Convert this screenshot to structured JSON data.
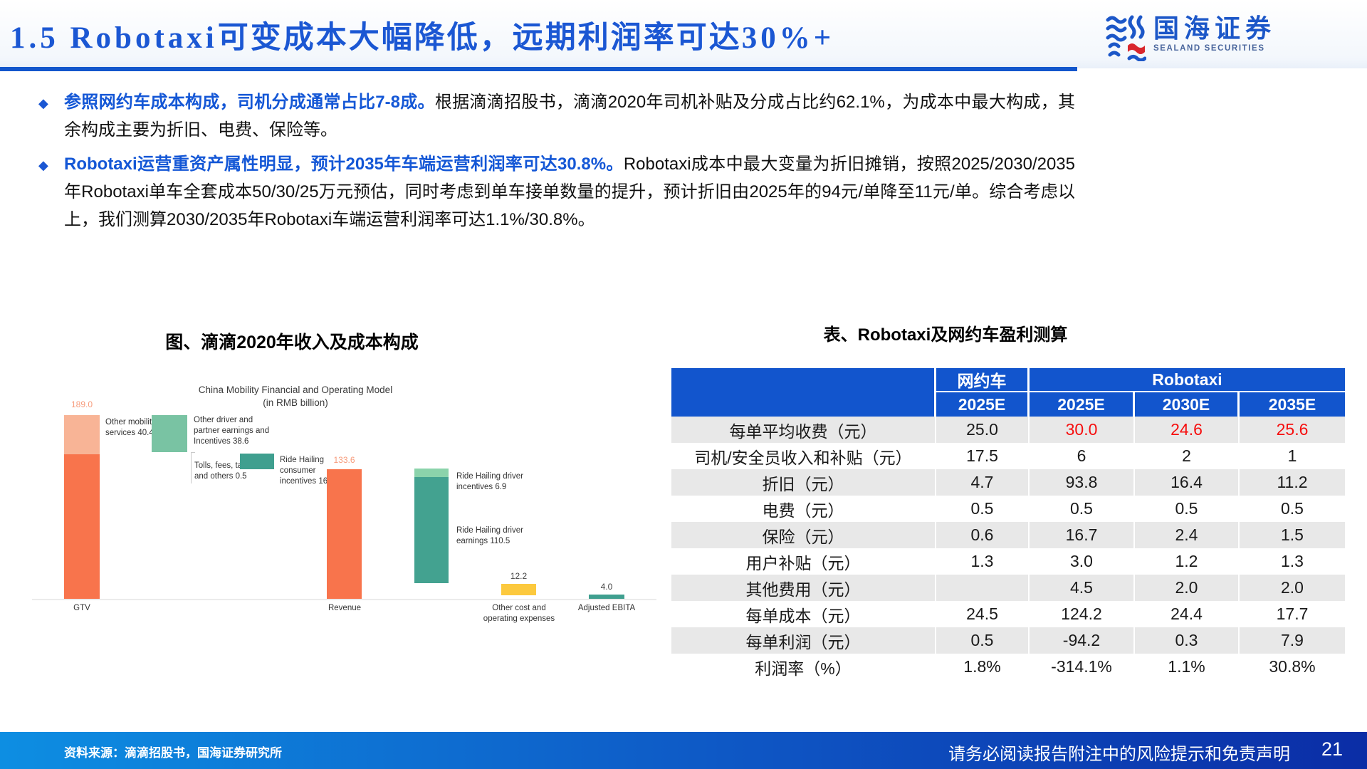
{
  "header": {
    "title_prefix": "1.5 Robotaxi",
    "title_zh": "可变成本大幅降低，远期利润率可达",
    "title_suffix": "30%+"
  },
  "logo": {
    "name_zh": "国海证券",
    "name_en": "SEALAND SECURITIES"
  },
  "bullets": [
    {
      "highlight": "参照网约车成本构成，司机分成通常占比7-8成。",
      "rest": "根据滴滴招股书，滴滴2020年司机补贴及分成占比约62.1%，为成本中最大构成，其余构成主要为折旧、电费、保险等。"
    },
    {
      "highlight": "Robotaxi运营重资产属性明显，预计2035年车端运营利润率可达30.8%。",
      "rest": "Robotaxi成本中最大变量为折旧摊销，按照2025/2030/2035年Robotaxi单车全套成本50/30/25万元预估，同时考虑到单车接单数量的提升，预计折旧由2025年的94元/单降至11元/单。综合考虑以上，我们测算2030/2035年Robotaxi车端运营利润率可达1.1%/30.8%。"
    }
  ],
  "chart_data": {
    "type": "waterfall",
    "caption": "图、滴滴2020年收入及成本构成",
    "title": "China Mobility Financial and Operating Model",
    "subtitle": "(in RMB billion)",
    "unit": "RMB billion",
    "x_axis_labels": [
      "GTV",
      "Revenue",
      "Other cost and",
      "operating expenses",
      "Adjusted EBITA"
    ],
    "columns": [
      {
        "category": "GTV",
        "total": 189.0,
        "total_label": "189.0",
        "segments": [
          {
            "label": "Other mobility services",
            "value": 40.4,
            "value_label": "40.4",
            "color": "#f8b496"
          },
          {
            "label": "",
            "value": 148.6,
            "value_label": "",
            "color": "#f8744c"
          }
        ]
      },
      {
        "category": "",
        "segments": [
          {
            "label": "Other driver and partner earnings and Incentives",
            "value": 38.6,
            "value_label": "38.6",
            "color": "#79c3a3"
          }
        ]
      },
      {
        "category": "",
        "segments": [
          {
            "label": "Tolls, fees, taxes and others",
            "value": 0.5,
            "value_label": "0.5",
            "color": "#d9d9d9"
          }
        ]
      },
      {
        "category": "",
        "segments": [
          {
            "label": "Ride Hailing consumer incentives",
            "value": 16.3,
            "value_label": "16.3",
            "color": "#3f9f8f"
          }
        ]
      },
      {
        "category": "Revenue",
        "total": 133.6,
        "total_label": "133.6",
        "segments": [
          {
            "label": "",
            "value": 133.6,
            "value_label": "",
            "color": "#f8744c"
          }
        ]
      },
      {
        "category": "",
        "segments": [
          {
            "label": "Ride Hailing driver incentives",
            "value": 6.9,
            "value_label": "6.9",
            "color": "#8bd3ab"
          },
          {
            "label": "Ride Hailing driver earnings",
            "value": 110.5,
            "value_label": "110.5",
            "color": "#43a290"
          }
        ]
      },
      {
        "category": "Other cost and operating expenses",
        "total": 12.2,
        "total_label": "12.2",
        "segments": [
          {
            "label": "",
            "value": 12.2,
            "value_label": "",
            "color": "#fcc93e"
          }
        ]
      },
      {
        "category": "Adjusted EBITA",
        "total": 4.0,
        "total_label": "4.0",
        "segments": [
          {
            "label": "",
            "value": 4.0,
            "value_label": "",
            "color": "#3f9f8f"
          }
        ]
      }
    ]
  },
  "table": {
    "caption": "表、Robotaxi及网约车盈利测算",
    "group_col_1": "网约车",
    "group_col_2": "Robotaxi",
    "year_headers": [
      "2025E",
      "2025E",
      "2030E",
      "2035E"
    ],
    "rows": [
      {
        "label": "每单平均收费（元）",
        "values": [
          "25.0",
          "30.0",
          "24.6",
          "25.6"
        ],
        "red_cols": [
          2,
          3,
          4
        ]
      },
      {
        "label": "司机/安全员收入和补贴（元）",
        "values": [
          "17.5",
          "6",
          "2",
          "1"
        ]
      },
      {
        "label": "折旧（元）",
        "values": [
          "4.7",
          "93.8",
          "16.4",
          "11.2"
        ]
      },
      {
        "label": "电费（元）",
        "values": [
          "0.5",
          "0.5",
          "0.5",
          "0.5"
        ]
      },
      {
        "label": "保险（元）",
        "values": [
          "0.6",
          "16.7",
          "2.4",
          "1.5"
        ]
      },
      {
        "label": "用户补贴（元）",
        "values": [
          "1.3",
          "3.0",
          "1.2",
          "1.3"
        ]
      },
      {
        "label": "其他费用（元）",
        "values": [
          "",
          "4.5",
          "2.0",
          "2.0"
        ]
      },
      {
        "label": "每单成本（元）",
        "values": [
          "24.5",
          "124.2",
          "24.4",
          "17.7"
        ]
      },
      {
        "label": "每单利润（元）",
        "values": [
          "0.5",
          "-94.2",
          "0.3",
          "7.9"
        ]
      },
      {
        "label": "利润率（%）",
        "values": [
          "1.8%",
          "-314.1%",
          "1.1%",
          "30.8%"
        ]
      }
    ]
  },
  "footer": {
    "source": "资料来源：滴滴招股书，国海证券研究所",
    "disclaimer": "请务必阅读报告附注中的风险提示和免责声明",
    "page": "21"
  },
  "colors": {
    "accent_blue": "#1b57d3",
    "table_header_bg": "#1255cd",
    "table_stripe": "#e8e8e8",
    "negative_red": "#f60d0d",
    "footer_gradient_left": "#0d8ee2",
    "footer_gradient_right": "#0b2da6",
    "orange": "#f8744c",
    "orange_light": "#f8b496",
    "value_label_orange": "#f79b7b",
    "green_mid": "#79c3a3",
    "teal": "#3f9f8f",
    "teal_dark": "#43a290",
    "green_light": "#8bd3ab",
    "yellow": "#fcc93e"
  }
}
